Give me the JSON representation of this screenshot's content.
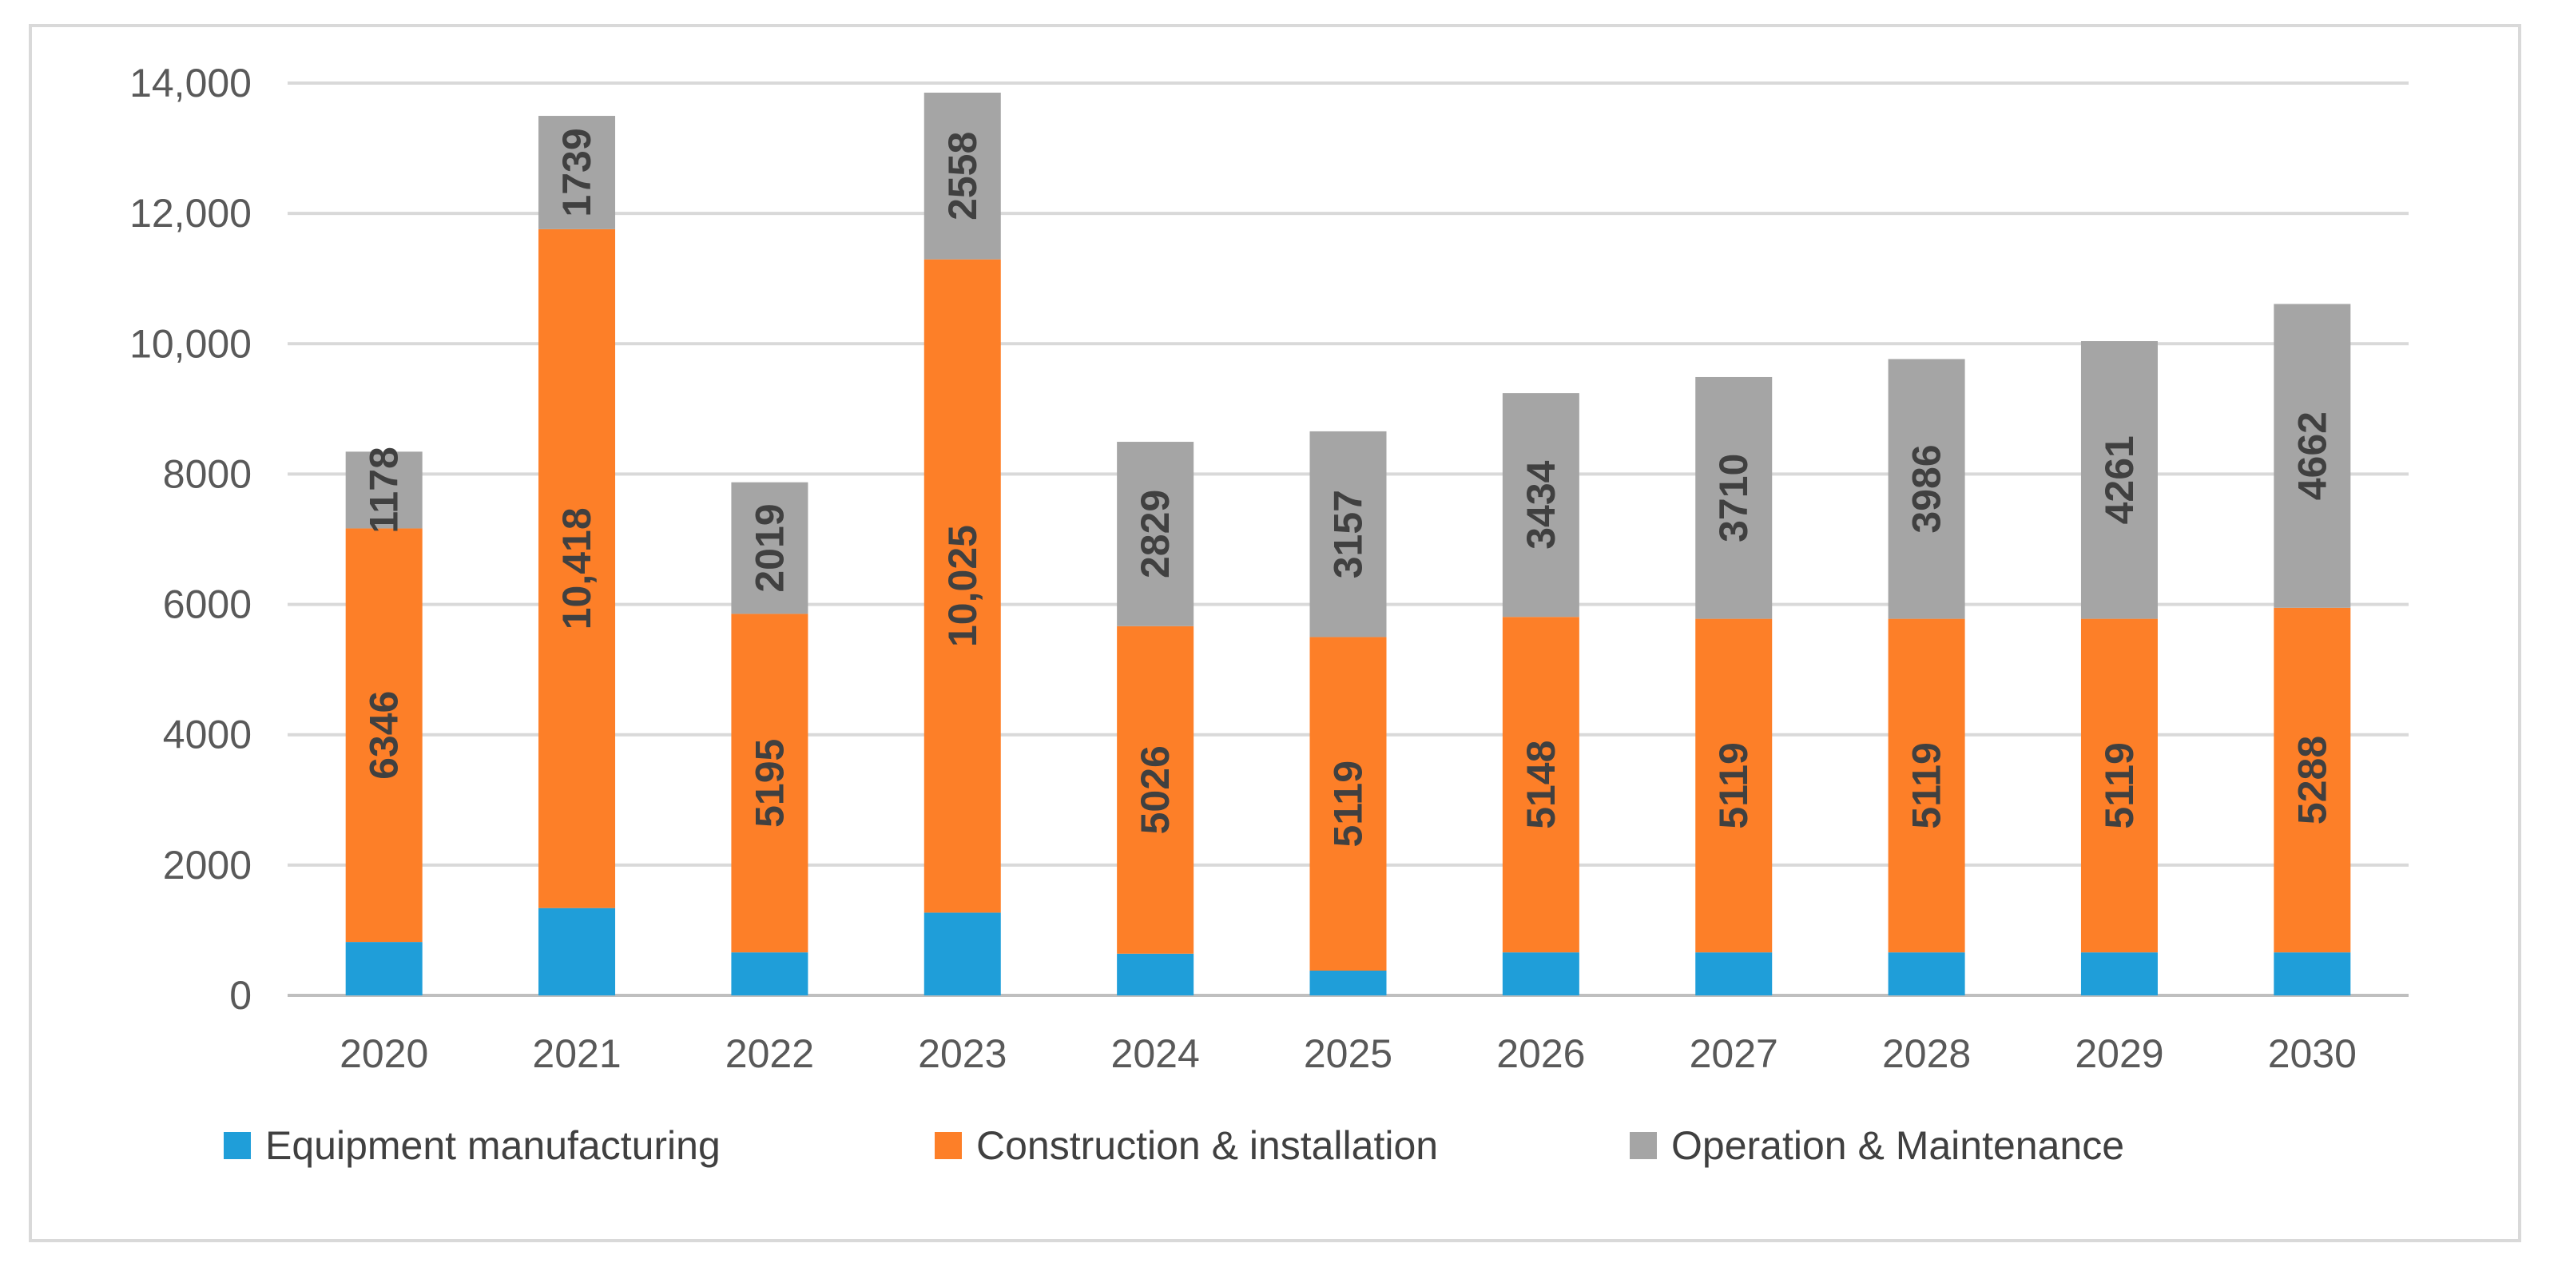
{
  "chart_data": {
    "type": "bar",
    "stacked": true,
    "title": "",
    "xlabel": "",
    "ylabel": "",
    "ylim": [
      0,
      14000
    ],
    "grid": true,
    "legend_position": "bottom",
    "y_ticks": [
      0,
      2000,
      4000,
      6000,
      8000,
      10000,
      12000,
      14000
    ],
    "y_tick_labels": [
      "0",
      "2000",
      "4000",
      "6000",
      "8000",
      "10,000",
      "12,000",
      "14,000"
    ],
    "categories": [
      "2020",
      "2021",
      "2022",
      "2023",
      "2024",
      "2025",
      "2026",
      "2027",
      "2028",
      "2029",
      "2030"
    ],
    "series": [
      {
        "name": "Equipment manufacturing",
        "color": "#1f9ed9",
        "values": [
          820,
          1340,
          660,
          1270,
          640,
          380,
          660,
          660,
          660,
          660,
          660
        ],
        "labels": [
          "",
          "",
          "",
          "",
          "",
          "",
          "",
          "",
          "",
          "",
          ""
        ]
      },
      {
        "name": "Construction & installation",
        "color": "#fd7f28",
        "values": [
          6346,
          10418,
          5195,
          10025,
          5026,
          5119,
          5148,
          5119,
          5119,
          5119,
          5288
        ],
        "labels": [
          "6346",
          "10,418",
          "5195",
          "10,025",
          "5026",
          "5119",
          "5148",
          "5119",
          "5119",
          "5119",
          "5288"
        ]
      },
      {
        "name": "Operation & Maintenance",
        "color": "#a5a5a5",
        "values": [
          1178,
          1739,
          2019,
          2558,
          2829,
          3157,
          3434,
          3710,
          3986,
          4261,
          4662
        ],
        "labels": [
          "1178",
          "1739",
          "2019",
          "2558",
          "2829",
          "3157",
          "3434",
          "3710",
          "3986",
          "4261",
          "4662"
        ]
      }
    ]
  }
}
